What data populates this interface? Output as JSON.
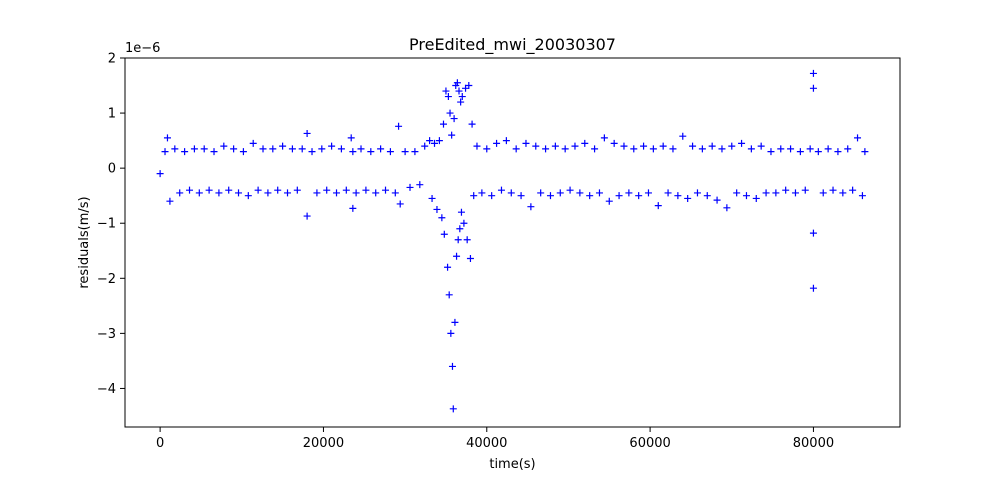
{
  "chart_data": {
    "type": "scatter",
    "title": "PreEdited_mwi_20030307",
    "xlabel": "time(s)",
    "ylabel": "residuals(m/s)",
    "y_scale_label": "1e−6",
    "xlim": [
      -4300,
      90600
    ],
    "ylim": [
      -4.7,
      2.0
    ],
    "x_ticks": [
      0,
      20000,
      40000,
      60000,
      80000
    ],
    "x_tick_labels": [
      "0",
      "20000",
      "40000",
      "60000",
      "80000"
    ],
    "y_ticks": [
      2,
      1,
      0,
      -1,
      -2,
      -3,
      -4
    ],
    "y_tick_labels": [
      "2",
      "1",
      "0",
      "−1",
      "−2",
      "−3",
      "−4"
    ],
    "marker": "+",
    "color": "#0000ff",
    "grid": false,
    "legend": "none",
    "series": [
      {
        "x": [
          0,
          600,
          900,
          1200,
          1800,
          2400,
          3000,
          3600,
          4200,
          4800,
          5400,
          6000,
          6600,
          7200,
          7800,
          8400,
          9000,
          9600,
          10200,
          10800,
          11400,
          12000,
          12600,
          13200,
          13800,
          14400,
          15000,
          15600,
          16200,
          16800,
          17400,
          18000,
          18000,
          18600,
          19200,
          19800,
          20400,
          21000,
          21600,
          22200,
          22800,
          23400,
          23600,
          23600,
          24000,
          24600,
          25200,
          25800,
          26400,
          27000,
          27600,
          28200,
          28800,
          29200,
          29400,
          30000,
          30600,
          31200,
          31800,
          32400,
          33000,
          33300,
          33600,
          33900,
          34200,
          34500,
          34700,
          34800,
          35000,
          35200,
          35300,
          35400,
          35500,
          35600,
          35700,
          35800,
          35900,
          36000,
          36100,
          36200,
          36300,
          36400,
          36500,
          36600,
          36700,
          36800,
          36900,
          37000,
          37200,
          37400,
          37600,
          37800,
          38000,
          38200,
          38400,
          38800,
          39400,
          40000,
          40600,
          41200,
          41800,
          42400,
          43000,
          43600,
          44200,
          44800,
          45400,
          46000,
          46600,
          47200,
          47800,
          48400,
          49000,
          49600,
          50200,
          50800,
          51400,
          52000,
          52600,
          53200,
          53800,
          54400,
          55000,
          55600,
          56200,
          56800,
          57400,
          58000,
          58600,
          59200,
          59800,
          60400,
          61000,
          61600,
          62200,
          62800,
          63400,
          64000,
          64600,
          65200,
          65800,
          66400,
          67000,
          67600,
          68200,
          68800,
          69400,
          70000,
          70600,
          71200,
          71800,
          72400,
          73000,
          73600,
          74200,
          74800,
          75400,
          76000,
          76600,
          77200,
          77800,
          78400,
          79000,
          79600,
          80000,
          80000,
          80000,
          80000,
          80600,
          81200,
          81800,
          82400,
          83000,
          83600,
          84200,
          84800,
          85400,
          86000,
          86300
        ],
        "y": [
          -0.1,
          0.3,
          0.55,
          -0.6,
          0.35,
          -0.45,
          0.3,
          -0.4,
          0.35,
          -0.45,
          0.35,
          -0.4,
          0.3,
          -0.45,
          0.4,
          -0.4,
          0.35,
          -0.45,
          0.3,
          -0.5,
          0.45,
          -0.4,
          0.35,
          -0.45,
          0.35,
          -0.4,
          0.4,
          -0.45,
          0.35,
          -0.4,
          0.35,
          0.63,
          -0.87,
          0.3,
          -0.45,
          0.35,
          -0.4,
          0.4,
          -0.45,
          0.35,
          -0.4,
          0.55,
          -0.73,
          0.3,
          -0.45,
          0.35,
          -0.4,
          0.3,
          -0.45,
          0.35,
          -0.4,
          0.3,
          -0.45,
          0.76,
          -0.65,
          0.3,
          -0.35,
          0.3,
          -0.3,
          0.4,
          0.5,
          -0.55,
          0.45,
          -0.75,
          0.5,
          -0.9,
          0.8,
          -1.2,
          1.4,
          -1.8,
          1.3,
          -2.3,
          1.0,
          -3.0,
          0.6,
          -3.6,
          -4.37,
          0.9,
          -2.8,
          1.5,
          -1.6,
          1.55,
          -1.3,
          1.4,
          -1.1,
          1.2,
          -0.8,
          1.3,
          -1.0,
          1.45,
          -1.3,
          1.5,
          -1.64,
          0.8,
          -0.5,
          0.4,
          -0.45,
          0.35,
          -0.5,
          0.45,
          -0.4,
          0.5,
          -0.45,
          0.35,
          -0.5,
          0.45,
          -0.7,
          0.4,
          -0.45,
          0.35,
          -0.5,
          0.4,
          -0.45,
          0.35,
          -0.4,
          0.4,
          -0.45,
          0.45,
          -0.5,
          0.35,
          -0.45,
          0.55,
          -0.6,
          0.45,
          -0.5,
          0.4,
          -0.45,
          0.35,
          -0.5,
          0.4,
          -0.45,
          0.35,
          -0.68,
          0.4,
          -0.45,
          0.35,
          -0.5,
          0.58,
          -0.55,
          0.4,
          -0.45,
          0.35,
          -0.5,
          0.4,
          -0.58,
          0.35,
          -0.72,
          0.4,
          -0.45,
          0.45,
          -0.5,
          0.35,
          -0.55,
          0.4,
          -0.45,
          0.3,
          -0.45,
          0.35,
          -0.4,
          0.35,
          -0.45,
          0.3,
          -0.4,
          0.35,
          1.72,
          1.45,
          -1.18,
          -2.18,
          0.3,
          -0.45,
          0.35,
          -0.4,
          0.3,
          -0.45,
          0.35,
          -0.4,
          0.55,
          -0.5,
          0.3
        ]
      }
    ]
  }
}
